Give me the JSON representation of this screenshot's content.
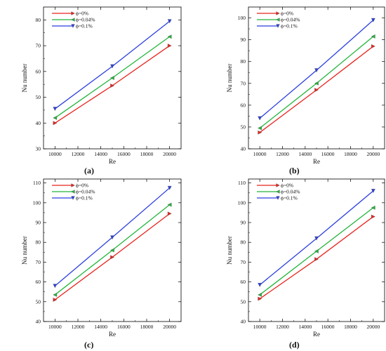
{
  "panel_labels": [
    "(a)",
    "(b)",
    "(c)",
    "(d)"
  ],
  "chart_data": [
    {
      "type": "line",
      "panel": "(a)",
      "xlabel": "Re",
      "ylabel": "Nu number",
      "xlim": [
        9000,
        21000
      ],
      "ylim": [
        30,
        85
      ],
      "xticks": [
        10000,
        12000,
        14000,
        16000,
        18000,
        20000
      ],
      "yticks": [
        30,
        40,
        50,
        60,
        70,
        80
      ],
      "x": [
        10000,
        15000,
        20000
      ],
      "legend_position": "top-left",
      "series": [
        {
          "name": "ϕ=0%",
          "color": "#e8231c",
          "marker": "triangle-right",
          "values": [
            40.0,
            54.5,
            70.0
          ]
        },
        {
          "name": "ϕ=0.04%",
          "color": "#22b53a",
          "marker": "triangle-left",
          "values": [
            42.0,
            57.5,
            73.5
          ]
        },
        {
          "name": "ϕ=0.1%",
          "color": "#2b3fe0",
          "marker": "triangle-down",
          "values": [
            45.5,
            62.0,
            79.5
          ]
        }
      ]
    },
    {
      "type": "line",
      "panel": "(b)",
      "xlabel": "Re",
      "ylabel": "Nu number",
      "xlim": [
        9000,
        21000
      ],
      "ylim": [
        40,
        105
      ],
      "xticks": [
        10000,
        12000,
        14000,
        16000,
        18000,
        20000
      ],
      "yticks": [
        40,
        50,
        60,
        70,
        80,
        90,
        100
      ],
      "x": [
        10000,
        15000,
        20000
      ],
      "legend_position": "top-left",
      "series": [
        {
          "name": "ϕ=0%",
          "color": "#e8231c",
          "marker": "triangle-right",
          "values": [
            47.5,
            67.0,
            87.0
          ]
        },
        {
          "name": "ϕ=0.04%",
          "color": "#22b53a",
          "marker": "triangle-left",
          "values": [
            49.5,
            70.0,
            91.5
          ]
        },
        {
          "name": "ϕ=0.1%",
          "color": "#2b3fe0",
          "marker": "triangle-down",
          "values": [
            54.0,
            76.0,
            99.0
          ]
        }
      ]
    },
    {
      "type": "line",
      "panel": "(c)",
      "xlabel": "Re",
      "ylabel": "Nu number",
      "xlim": [
        9000,
        21000
      ],
      "ylim": [
        40,
        112
      ],
      "xticks": [
        10000,
        12000,
        14000,
        16000,
        18000,
        20000
      ],
      "yticks": [
        40,
        50,
        60,
        70,
        80,
        90,
        100,
        110
      ],
      "x": [
        10000,
        15000,
        20000
      ],
      "legend_position": "top-left",
      "series": [
        {
          "name": "ϕ=0%",
          "color": "#e8231c",
          "marker": "triangle-right",
          "values": [
            51.0,
            72.5,
            94.5
          ]
        },
        {
          "name": "ϕ=0.04%",
          "color": "#22b53a",
          "marker": "triangle-left",
          "values": [
            53.5,
            76.0,
            99.0
          ]
        },
        {
          "name": "ϕ=0.1%",
          "color": "#2b3fe0",
          "marker": "triangle-down",
          "values": [
            58.0,
            82.5,
            107.5
          ]
        }
      ]
    },
    {
      "type": "line",
      "panel": "(d)",
      "xlabel": "Re",
      "ylabel": "Nu number",
      "xlim": [
        9000,
        21000
      ],
      "ylim": [
        40,
        112
      ],
      "xticks": [
        10000,
        12000,
        14000,
        16000,
        18000,
        20000
      ],
      "yticks": [
        40,
        50,
        60,
        70,
        80,
        90,
        100,
        110
      ],
      "x": [
        10000,
        15000,
        20000
      ],
      "legend_position": "top-left",
      "series": [
        {
          "name": "ϕ=0%",
          "color": "#e8231c",
          "marker": "triangle-right",
          "values": [
            51.5,
            71.5,
            93.0
          ]
        },
        {
          "name": "ϕ=0.04%",
          "color": "#22b53a",
          "marker": "triangle-left",
          "values": [
            53.5,
            75.5,
            97.5
          ]
        },
        {
          "name": "ϕ=0.1%",
          "color": "#2b3fe0",
          "marker": "triangle-down",
          "values": [
            58.5,
            82.0,
            106.0
          ]
        }
      ]
    }
  ]
}
